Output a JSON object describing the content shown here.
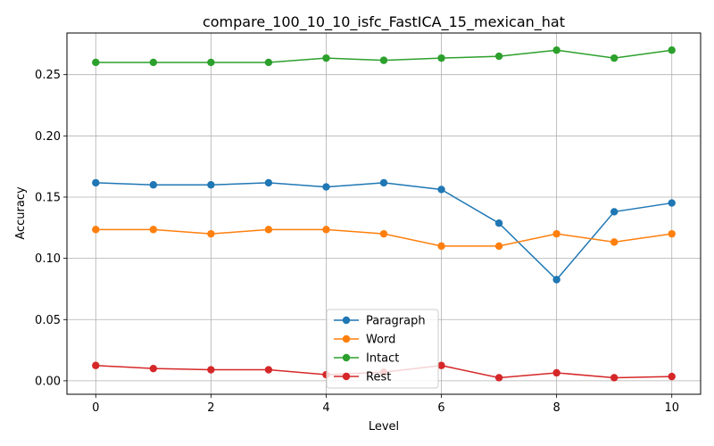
{
  "chart_data": {
    "type": "line",
    "title": "compare_100_10_10_isfc_FastICA_15_mexican_hat",
    "xlabel": "Level",
    "ylabel": "Accuracy",
    "x": [
      0,
      1,
      2,
      3,
      4,
      5,
      6,
      7,
      8,
      9,
      10
    ],
    "xlim": [
      -0.5,
      10.5
    ],
    "ylim": [
      -0.011,
      0.284
    ],
    "xticks": [
      0,
      2,
      4,
      6,
      8,
      10
    ],
    "xtick_labels": [
      "0",
      "2",
      "4",
      "6",
      "8",
      "10"
    ],
    "yticks": [
      0.0,
      0.05,
      0.1,
      0.15,
      0.2,
      0.25
    ],
    "ytick_labels": [
      "0.00",
      "0.05",
      "0.10",
      "0.15",
      "0.20",
      "0.25"
    ],
    "grid": true,
    "legend_position": "lower-center",
    "series": [
      {
        "name": "Paragraph",
        "color": "#1f77b4",
        "values": [
          0.1617,
          0.16,
          0.16,
          0.1617,
          0.1583,
          0.1617,
          0.1562,
          0.1287,
          0.0826,
          0.138,
          0.1452
        ]
      },
      {
        "name": "Word",
        "color": "#ff7f0e",
        "values": [
          0.1235,
          0.1235,
          0.12,
          0.1235,
          0.1235,
          0.12,
          0.11,
          0.11,
          0.12,
          0.1133,
          0.12
        ]
      },
      {
        "name": "Intact",
        "color": "#2ca02c",
        "values": [
          0.26,
          0.26,
          0.26,
          0.26,
          0.2635,
          0.2617,
          0.2635,
          0.265,
          0.27,
          0.2635,
          0.27
        ]
      },
      {
        "name": "Rest",
        "color": "#d62728",
        "values": [
          0.0125,
          0.01,
          0.009,
          0.009,
          0.005,
          0.007,
          0.0125,
          0.0025,
          0.0065,
          0.0025,
          0.0035
        ]
      }
    ]
  }
}
